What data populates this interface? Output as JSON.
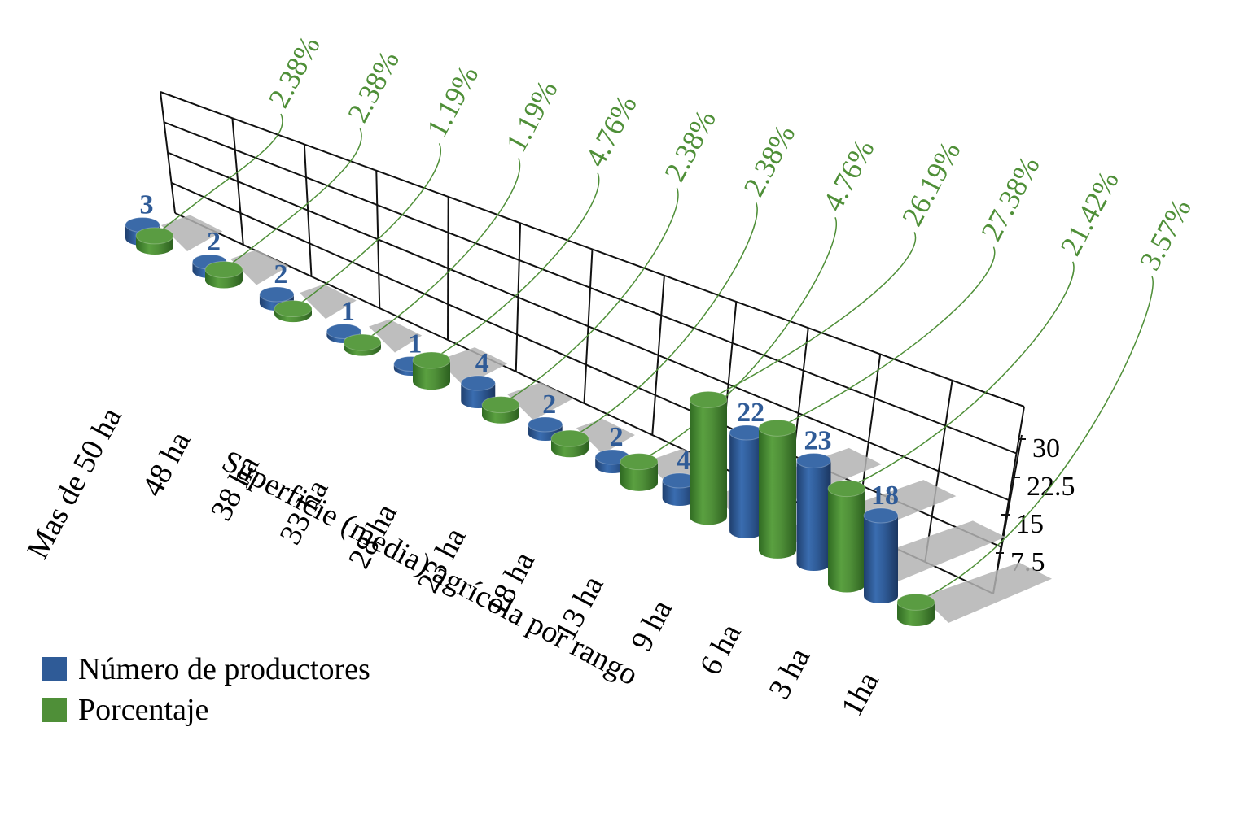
{
  "chart_data": {
    "type": "bar",
    "subtype": "3d-cylinder",
    "xlabel": "Superficie (media) agrícola por rango",
    "categories": [
      "Mas de 50 ha",
      "48 ha",
      "38 ha",
      "33 ha",
      "28 ha",
      "23 ha",
      "18 ha",
      "13 ha",
      "9 ha",
      "6 ha",
      "3 ha",
      "1ha"
    ],
    "series": [
      {
        "name": "Número de productores",
        "color": "#2f5b97",
        "values": [
          3,
          2,
          2,
          1,
          1,
          4,
          2,
          2,
          4,
          22,
          23,
          18
        ],
        "labels": [
          "3",
          "2",
          "2",
          "1",
          "1",
          "4",
          "2",
          "2",
          "4",
          "22",
          "23",
          "18"
        ]
      },
      {
        "name": "Porcentaje",
        "color": "#4f8f38",
        "values": [
          2.38,
          2.38,
          1.19,
          1.19,
          4.76,
          2.38,
          2.38,
          4.76,
          26.19,
          27.38,
          21.42,
          3.57
        ],
        "labels": [
          "2.38%",
          "2.38%",
          "1.19%",
          "1.19%",
          "4.76%",
          "2.38%",
          "2.38%",
          "4.76%",
          "26.19%",
          "27.38%",
          "21.42%",
          "3.57%"
        ]
      }
    ],
    "yticks": [
      "30",
      "22.5",
      "15",
      "7.5"
    ],
    "ylim": [
      0,
      30
    ],
    "legend_position": "bottom-left",
    "grid": true,
    "label_colors": {
      "count": "#2f5b97",
      "percent": "#4f8f38"
    }
  }
}
